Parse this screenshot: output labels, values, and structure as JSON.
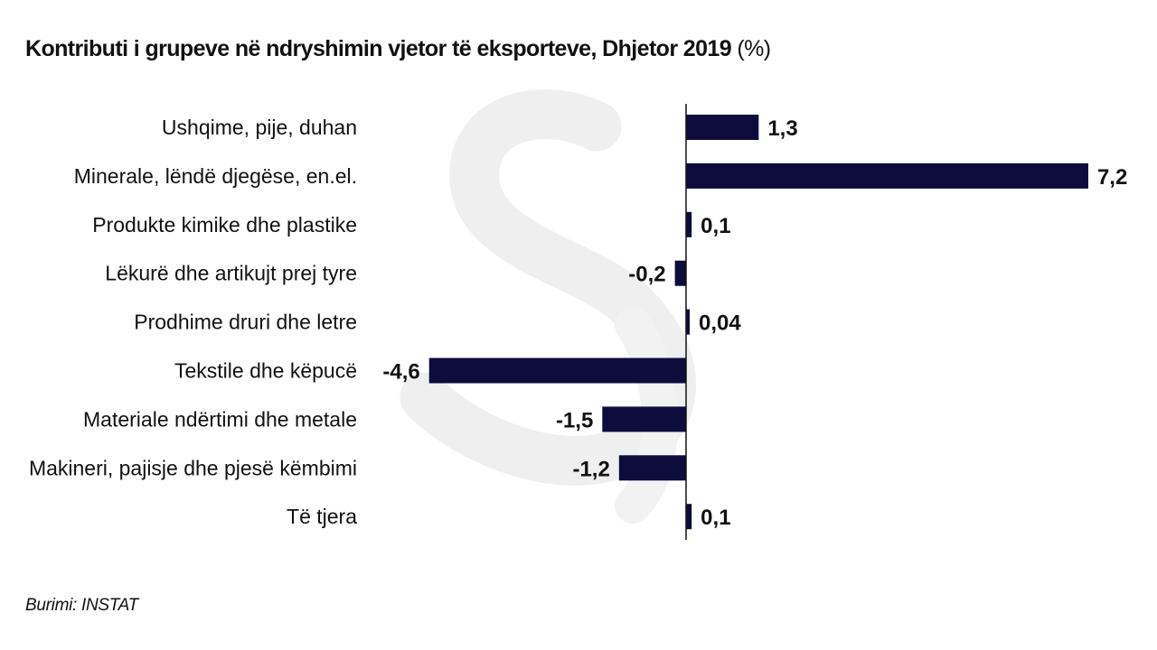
{
  "title": {
    "main": "Kontributi i grupeve në ndryshimin vjetor të eksporteve, Dhjetor 2019",
    "unit": " (%)"
  },
  "source": "Burimi: INSTAT",
  "colors": {
    "bar": "#0d0c3d",
    "axis": "#111111",
    "watermark": "#efefef"
  },
  "chart_data": {
    "type": "bar",
    "orientation": "horizontal",
    "title": "Kontributi i grupeve në ndryshimin vjetor të eksporteve, Dhjetor 2019 (%)",
    "xlabel": "",
    "ylabel": "",
    "xlim": [
      -4.6,
      7.2
    ],
    "grid": false,
    "categories": [
      "Ushqime, pije, duhan",
      "Minerale, lëndë djegëse, en.el.",
      "Produkte kimike dhe plastike",
      "Lëkurë dhe artikujt prej tyre",
      "Prodhime druri dhe letre",
      "Tekstile dhe këpucë",
      "Materiale ndërtimi dhe metale",
      "Makineri, pajisje dhe pjesë këmbimi",
      "Të tjera"
    ],
    "values": [
      1.3,
      7.2,
      0.1,
      -0.2,
      0.04,
      -4.6,
      -1.5,
      -1.2,
      0.1
    ],
    "value_labels": [
      "1,3",
      "7,2",
      "0,1",
      "-0,2",
      "0,04",
      "-4,6",
      "-1,5",
      "-1,2",
      "0,1"
    ]
  }
}
